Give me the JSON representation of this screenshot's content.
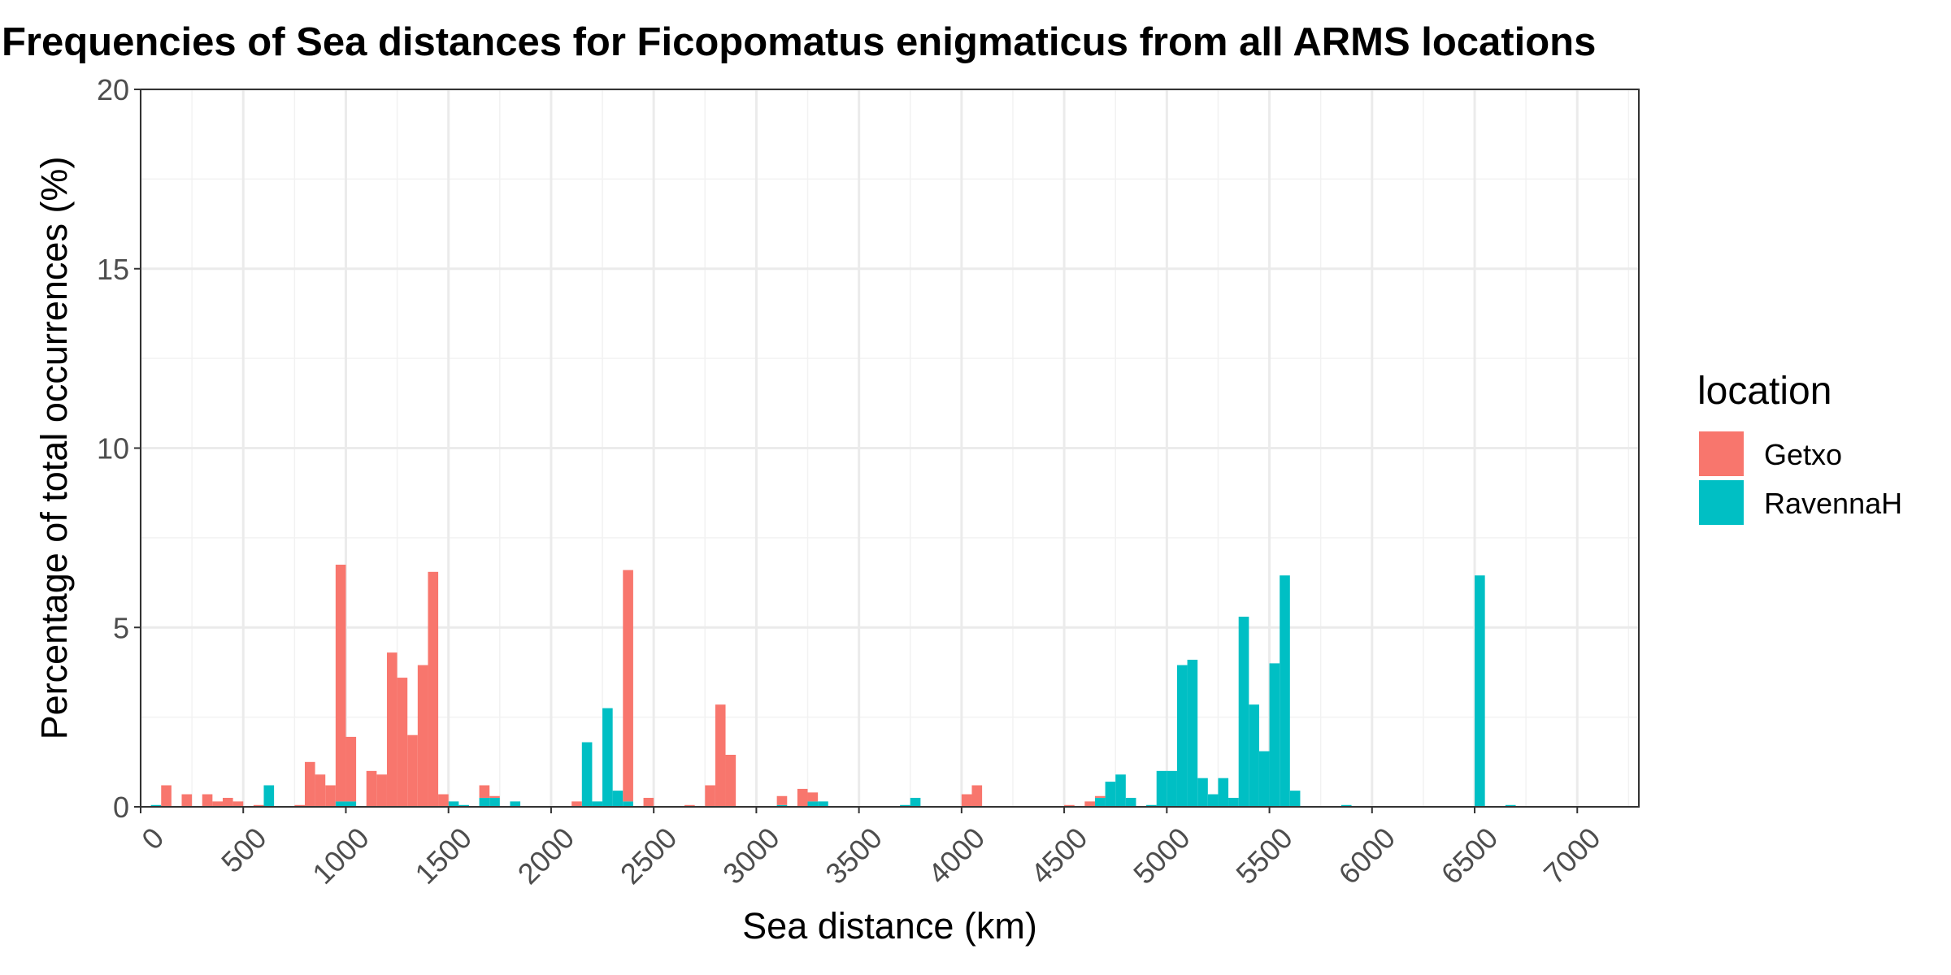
{
  "chart_data": {
    "type": "bar",
    "title": "Frequencies of Sea distances for Ficopomatus enigmaticus from all ARMS locations",
    "xlabel": "Sea distance (km)",
    "ylabel": "Percentage of total occurrences (%)",
    "xlim": [
      0,
      7300
    ],
    "ylim": [
      0,
      20
    ],
    "x_ticks": [
      0,
      500,
      1000,
      1500,
      2000,
      2500,
      3000,
      3500,
      4000,
      4500,
      5000,
      5500,
      6000,
      6500,
      7000
    ],
    "y_ticks": [
      0,
      5,
      10,
      15,
      20
    ],
    "bin_width": 50,
    "grid": true,
    "legend_title": "location",
    "legend_position": "right",
    "series": [
      {
        "name": "Getxo",
        "color": "#F8766D",
        "bins": [
          [
            125,
            0.6
          ],
          [
            225,
            0.35
          ],
          [
            325,
            0.35
          ],
          [
            375,
            0.15
          ],
          [
            425,
            0.25
          ],
          [
            475,
            0.15
          ],
          [
            575,
            0.05
          ],
          [
            775,
            0.05
          ],
          [
            825,
            1.25
          ],
          [
            875,
            0.9
          ],
          [
            925,
            0.6
          ],
          [
            975,
            6.6
          ],
          [
            1025,
            1.8
          ],
          [
            1125,
            1.0
          ],
          [
            1175,
            0.9
          ],
          [
            1225,
            4.3
          ],
          [
            1275,
            3.6
          ],
          [
            1325,
            2.0
          ],
          [
            1375,
            3.95
          ],
          [
            1425,
            6.55
          ],
          [
            1475,
            0.35
          ],
          [
            1675,
            0.35
          ],
          [
            1725,
            0.05
          ],
          [
            2125,
            0.15
          ],
          [
            2375,
            6.45
          ],
          [
            2475,
            0.25
          ],
          [
            2675,
            0.05
          ],
          [
            2775,
            0.6
          ],
          [
            2825,
            2.85
          ],
          [
            2875,
            1.45
          ],
          [
            3125,
            0.25
          ],
          [
            3225,
            0.5
          ],
          [
            3275,
            0.25
          ],
          [
            4025,
            0.35
          ],
          [
            4075,
            0.6
          ],
          [
            4525,
            0.05
          ],
          [
            4625,
            0.15
          ],
          [
            4675,
            0.05
          ]
        ]
      },
      {
        "name": "RavennaH",
        "color": "#00BFC4",
        "bins": [
          [
            75,
            0.05
          ],
          [
            625,
            0.6
          ],
          [
            975,
            0.15
          ],
          [
            1025,
            0.15
          ],
          [
            1525,
            0.15
          ],
          [
            1575,
            0.05
          ],
          [
            1675,
            0.25
          ],
          [
            1725,
            0.25
          ],
          [
            1825,
            0.15
          ],
          [
            2175,
            1.8
          ],
          [
            2225,
            0.15
          ],
          [
            2275,
            2.75
          ],
          [
            2325,
            0.45
          ],
          [
            2375,
            0.15
          ],
          [
            3125,
            0.05
          ],
          [
            3275,
            0.15
          ],
          [
            3325,
            0.15
          ],
          [
            3725,
            0.05
          ],
          [
            3775,
            0.25
          ],
          [
            4675,
            0.25
          ],
          [
            4725,
            0.7
          ],
          [
            4775,
            0.9
          ],
          [
            4825,
            0.25
          ],
          [
            4925,
            0.05
          ],
          [
            4975,
            1.0
          ],
          [
            5025,
            1.0
          ],
          [
            5075,
            3.95
          ],
          [
            5125,
            4.1
          ],
          [
            5175,
            0.8
          ],
          [
            5225,
            0.35
          ],
          [
            5275,
            0.8
          ],
          [
            5325,
            0.25
          ],
          [
            5375,
            5.3
          ],
          [
            5425,
            2.85
          ],
          [
            5475,
            1.55
          ],
          [
            5525,
            4.0
          ],
          [
            5575,
            6.45
          ],
          [
            5625,
            0.45
          ],
          [
            5875,
            0.05
          ],
          [
            6525,
            6.45
          ],
          [
            6675,
            0.05
          ]
        ]
      }
    ]
  }
}
